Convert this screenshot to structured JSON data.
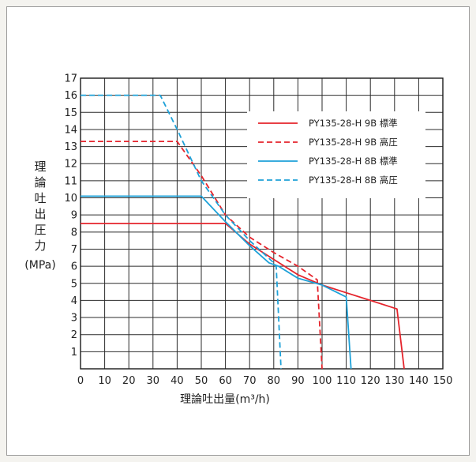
{
  "chart_data": {
    "type": "line",
    "xlabel": "理論吐出量(m³/h)",
    "ylabel_chars": [
      "理",
      "論",
      "吐",
      "出",
      "圧",
      "力"
    ],
    "ylabel_unit": "(MPa)",
    "xlim": [
      0,
      150
    ],
    "ylim": [
      0,
      17
    ],
    "xticks": [
      0,
      10,
      20,
      30,
      40,
      50,
      60,
      70,
      80,
      90,
      100,
      110,
      120,
      130,
      140,
      150
    ],
    "yticks": [
      1,
      2,
      3,
      4,
      5,
      6,
      7,
      8,
      9,
      10,
      11,
      12,
      13,
      14,
      15,
      16,
      17
    ],
    "grid": true,
    "legend_position": "top-right",
    "series": [
      {
        "name": "PY135-28-H 9B 標準",
        "color": "#e5242c",
        "dash": "solid",
        "points": [
          [
            0,
            8.5
          ],
          [
            60,
            8.5
          ],
          [
            70,
            7.3
          ],
          [
            80,
            6.4
          ],
          [
            90,
            5.5
          ],
          [
            100,
            4.9
          ],
          [
            110,
            4.45
          ],
          [
            120,
            4.0
          ],
          [
            131,
            3.5
          ],
          [
            134,
            0
          ]
        ]
      },
      {
        "name": "PY135-28-H 9B 高圧",
        "color": "#e5242c",
        "dash": "dashed",
        "points": [
          [
            0,
            13.3
          ],
          [
            40,
            13.3
          ],
          [
            50,
            11.3
          ],
          [
            60,
            9.0
          ],
          [
            70,
            7.7
          ],
          [
            80,
            6.8
          ],
          [
            90,
            6.0
          ],
          [
            98,
            5.2
          ],
          [
            100,
            0
          ]
        ]
      },
      {
        "name": "PY135-28-H 8B 標準",
        "color": "#1ea1d8",
        "dash": "solid",
        "points": [
          [
            0,
            10.1
          ],
          [
            50,
            10.1
          ],
          [
            60,
            8.6
          ],
          [
            70,
            7.2
          ],
          [
            78,
            6.2
          ],
          [
            82,
            6.0
          ],
          [
            90,
            5.3
          ],
          [
            100,
            4.9
          ],
          [
            110,
            4.2
          ],
          [
            112,
            0
          ]
        ]
      },
      {
        "name": "PY135-28-H 8B 高圧",
        "color": "#1ea1d8",
        "dash": "dashed",
        "points": [
          [
            0,
            16.0
          ],
          [
            33,
            16.0
          ],
          [
            40,
            14.0
          ],
          [
            50,
            11.0
          ],
          [
            60,
            9.0
          ],
          [
            70,
            7.5
          ],
          [
            80,
            6.2
          ],
          [
            81,
            6.0
          ],
          [
            83,
            0
          ]
        ]
      }
    ]
  }
}
